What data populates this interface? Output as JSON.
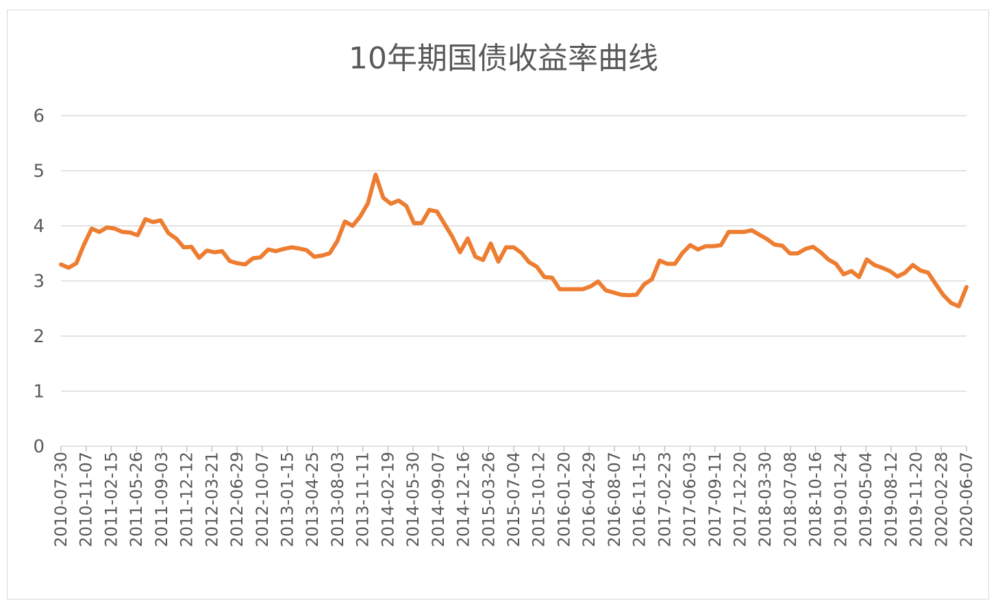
{
  "chart_data": {
    "type": "line",
    "title": "10年期国债收益率曲线",
    "xlabel": "",
    "ylabel": "",
    "ylim": [
      0,
      6
    ],
    "y_ticks": [
      "0",
      "1",
      "2",
      "3",
      "4",
      "5",
      "6"
    ],
    "x_tick_labels": [
      "2010-07-30",
      "2010-11-07",
      "2011-02-15",
      "2011-05-26",
      "2011-09-03",
      "2011-12-12",
      "2012-03-21",
      "2012-06-29",
      "2012-10-07",
      "2013-01-15",
      "2013-04-25",
      "2013-08-03",
      "2013-11-11",
      "2014-02-19",
      "2014-05-30",
      "2014-09-07",
      "2014-12-16",
      "2015-03-26",
      "2015-07-04",
      "2015-10-12",
      "2016-01-20",
      "2016-04-29",
      "2016-08-07",
      "2016-11-15",
      "2017-02-23",
      "2017-06-03",
      "2017-09-11",
      "2017-12-20",
      "2018-03-30",
      "2018-07-08",
      "2018-10-16",
      "2019-01-24",
      "2019-05-04",
      "2019-08-12",
      "2019-11-20",
      "2020-02-28",
      "2020-06-07"
    ],
    "grid": true,
    "legend": "none",
    "series": [
      {
        "color": "#ed7d31",
        "values": [
          3.3,
          3.24,
          3.32,
          3.66,
          3.95,
          3.89,
          3.97,
          3.95,
          3.89,
          3.88,
          3.83,
          4.12,
          4.07,
          4.1,
          3.87,
          3.77,
          3.61,
          3.62,
          3.42,
          3.55,
          3.52,
          3.54,
          3.36,
          3.32,
          3.3,
          3.41,
          3.43,
          3.57,
          3.54,
          3.58,
          3.61,
          3.59,
          3.56,
          3.44,
          3.46,
          3.5,
          3.72,
          4.08,
          4.0,
          4.17,
          4.41,
          4.93,
          4.51,
          4.4,
          4.46,
          4.36,
          4.05,
          4.05,
          4.29,
          4.26,
          4.03,
          3.8,
          3.52,
          3.77,
          3.44,
          3.38,
          3.68,
          3.35,
          3.61,
          3.61,
          3.51,
          3.34,
          3.26,
          3.07,
          3.06,
          2.85,
          2.85,
          2.85,
          2.85,
          2.9,
          2.99,
          2.83,
          2.79,
          2.75,
          2.74,
          2.75,
          2.94,
          3.03,
          3.37,
          3.31,
          3.31,
          3.51,
          3.65,
          3.57,
          3.63,
          3.63,
          3.65,
          3.89,
          3.89,
          3.89,
          3.92,
          3.84,
          3.76,
          3.66,
          3.64,
          3.5,
          3.5,
          3.58,
          3.62,
          3.52,
          3.39,
          3.31,
          3.12,
          3.18,
          3.07,
          3.39,
          3.29,
          3.24,
          3.18,
          3.08,
          3.15,
          3.29,
          3.19,
          3.15,
          2.94,
          2.74,
          2.6,
          2.54,
          2.89
        ]
      }
    ]
  }
}
